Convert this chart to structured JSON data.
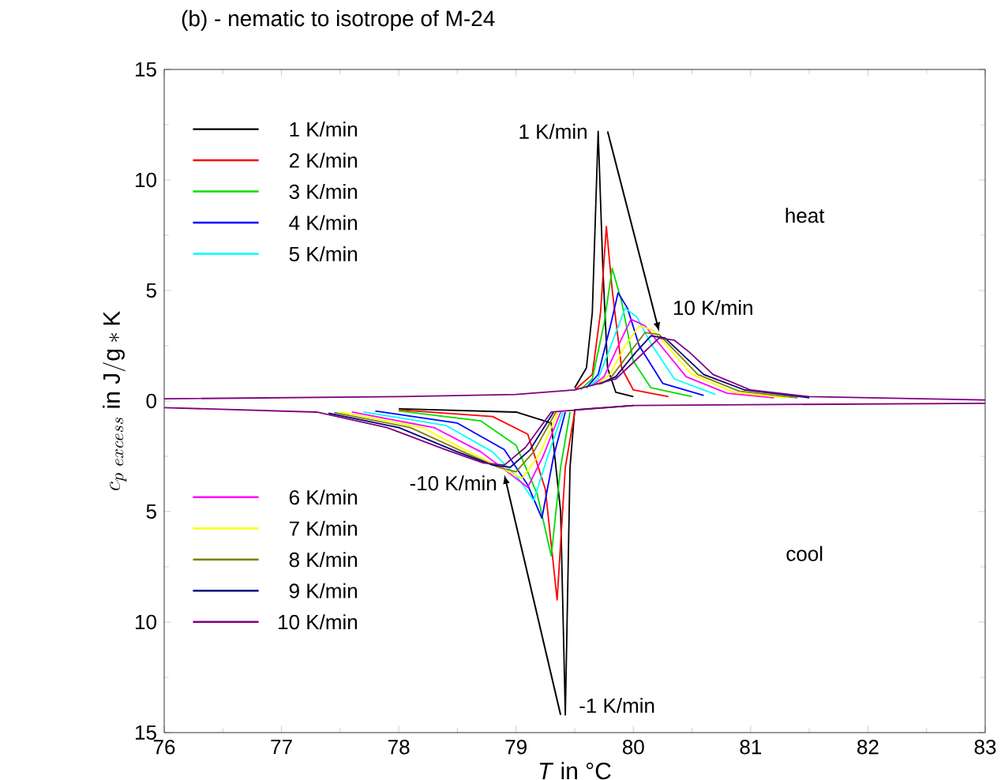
{
  "chart_data": {
    "type": "line",
    "title": "(b) - nematic to isotrope of M-24",
    "xlabel": "*T* in °C",
    "ylabel": "c_{p\\ excess}\\ \\mathrm{in\\ J/g*K}",
    "xlim": [
      76,
      83
    ],
    "xticks": [
      76,
      77,
      78,
      79,
      80,
      81,
      82,
      83
    ],
    "ylim": [
      -15,
      15
    ],
    "yticks": [
      {
        "value": -15,
        "label": "15"
      },
      {
        "value": -10,
        "label": "10"
      },
      {
        "value": -5,
        "label": "5"
      },
      0,
      5,
      10,
      15
    ],
    "legend": "left",
    "grid": false,
    "marker": "none",
    "line_style": "solid",
    "annotations": [
      {
        "text": "1 K/min",
        "x": 79.7,
        "y": 12.2
      },
      {
        "text": "10 K/min",
        "x": 80.22,
        "y": 2.85
      },
      {
        "text": "-10 K/min",
        "x": 78.9,
        "y": -2.9
      },
      {
        "text": "-1 K/min",
        "x": 79.42,
        "y": -14.2
      },
      "heat",
      "cool"
    ],
    "series": [
      {
        "name": "1 K/min",
        "color": "#000000",
        "x": [
          79.5,
          79.6,
          79.65,
          79.7,
          79.74,
          79.78,
          79.85,
          80
        ],
        "values": [
          0.6,
          1.5,
          4,
          12.2,
          6,
          1.5,
          0.4,
          0.2
        ]
      },
      {
        "name": "2 K/min",
        "color": "#ff0000",
        "x": [
          79.5,
          79.65,
          79.72,
          79.77,
          79.82,
          79.9,
          80,
          80.3
        ],
        "values": [
          0.5,
          1.2,
          4,
          7.9,
          5,
          1.5,
          0.5,
          0.2
        ]
      },
      {
        "name": "3 K/min",
        "color": "#00dd00",
        "x": [
          79.55,
          79.65,
          79.75,
          79.82,
          79.9,
          80,
          80.15,
          80.5
        ],
        "values": [
          0.52,
          1,
          3.5,
          6.0,
          4.5,
          1.8,
          0.6,
          0.2
        ]
      },
      {
        "name": "4 K/min",
        "color": "#0000ff",
        "x": [
          79.6,
          79.7,
          79.8,
          79.87,
          79.95,
          80.05,
          80.25,
          80.6
        ],
        "values": [
          0.6,
          1.2,
          3.3,
          4.9,
          4.2,
          2.5,
          0.8,
          0.25
        ]
      },
      {
        "name": "5 K/min",
        "color": "#00ffff",
        "x": [
          79.62,
          79.7,
          79.83,
          79.93,
          80.03,
          80.15,
          80.35,
          80.7
        ],
        "values": [
          0.65,
          1,
          2.8,
          4.2,
          3.8,
          2.6,
          1,
          0.3
        ]
      },
      {
        "name": "6 K/min",
        "color": "#ff00ff",
        "x": [
          79.65,
          79.75,
          79.88,
          79.98,
          80.1,
          80.25,
          80.45,
          80.8,
          81.2
        ],
        "values": [
          0.7,
          1.1,
          2.6,
          3.7,
          3.4,
          2.4,
          1.1,
          0.35,
          0.15
        ]
      },
      {
        "name": "7 K/min",
        "color": "#ffff00",
        "x": [
          79.68,
          79.8,
          79.93,
          80.05,
          80.17,
          80.3,
          80.5,
          80.85,
          81.3
        ],
        "values": [
          0.72,
          1.2,
          2.5,
          3.4,
          3.2,
          2.4,
          1.2,
          0.4,
          0.15
        ]
      },
      {
        "name": "8 K/min",
        "color": "#808000",
        "x": [
          79.7,
          79.8,
          79.97,
          80.1,
          80.22,
          80.35,
          80.55,
          80.9,
          81.4
        ],
        "values": [
          0.75,
          1.0,
          2.2,
          3.1,
          3.0,
          2.3,
          1.2,
          0.45,
          0.15
        ]
      },
      {
        "name": "9 K/min",
        "color": "#000080",
        "x": [
          79.72,
          79.85,
          80.02,
          80.15,
          80.27,
          80.4,
          80.6,
          80.95,
          81.5
        ],
        "values": [
          0.78,
          1.1,
          2.2,
          2.95,
          2.85,
          2.2,
          1.2,
          0.5,
          0.15
        ]
      },
      {
        "name": "10 K/min",
        "color": "#800080",
        "x": [
          76,
          78,
          79,
          79.5,
          79.85,
          80.05,
          80.22,
          80.35,
          80.48,
          80.68,
          81,
          81.5,
          83
        ],
        "values": [
          0.1,
          0.2,
          0.3,
          0.5,
          1.0,
          2.0,
          2.85,
          2.75,
          2.2,
          1.2,
          0.5,
          0.2,
          0.05
        ]
      },
      {
        "color": "#000000",
        "x": [
          78,
          79,
          79.3,
          79.38,
          79.42,
          79.46,
          79.5,
          80
        ],
        "values": [
          -0.35,
          -0.5,
          -1,
          -5,
          -14.2,
          -3,
          -0.4,
          -0.2
        ]
      },
      {
        "color": "#ff0000",
        "x": [
          78,
          78.8,
          79.1,
          79.25,
          79.35,
          79.42,
          79.5
        ],
        "values": [
          -0.4,
          -0.7,
          -1.5,
          -4,
          -9,
          -3,
          -0.5
        ]
      },
      {
        "color": "#00dd00",
        "x": [
          78,
          78.7,
          79,
          79.18,
          79.3,
          79.38,
          79.46
        ],
        "values": [
          -0.45,
          -0.9,
          -2,
          -4.2,
          -7,
          -3,
          -0.5
        ]
      },
      {
        "color": "#0000ff",
        "x": [
          77.8,
          78.5,
          78.9,
          79.1,
          79.22,
          79.32,
          79.42
        ],
        "values": [
          -0.45,
          -1,
          -2.2,
          -3.8,
          -5.3,
          -2.5,
          -0.5
        ]
      },
      {
        "color": "#00ffff",
        "x": [
          77.7,
          78.4,
          78.8,
          79.02,
          79.15,
          79.27,
          79.4
        ],
        "values": [
          -0.5,
          -1.1,
          -2.3,
          -3.5,
          -4.5,
          -2.5,
          -0.5
        ]
      },
      {
        "color": "#ff00ff",
        "x": [
          77.6,
          78.3,
          78.7,
          78.95,
          79.1,
          79.23,
          79.38
        ],
        "values": [
          -0.5,
          -1.2,
          -2.3,
          -3.3,
          -3.9,
          -2.5,
          -0.5
        ]
      },
      {
        "color": "#ffff00",
        "x": [
          77.5,
          78.2,
          78.6,
          78.9,
          79.05,
          79.2,
          79.36
        ],
        "values": [
          -0.5,
          -1.2,
          -2.3,
          -3.1,
          -3.5,
          -2.4,
          -0.5
        ]
      },
      {
        "color": "#808000",
        "x": [
          77.45,
          78.1,
          78.55,
          78.85,
          79.0,
          79.15,
          79.34
        ],
        "values": [
          -0.52,
          -1.2,
          -2.3,
          -3.0,
          -3.2,
          -2.3,
          -0.5
        ]
      },
      {
        "color": "#000080",
        "x": [
          77.4,
          78.0,
          78.5,
          78.8,
          78.95,
          79.12,
          79.32
        ],
        "values": [
          -0.55,
          -1.2,
          -2.3,
          -2.9,
          -3.0,
          -2.2,
          -0.5
        ]
      },
      {
        "color": "#800080",
        "x": [
          76,
          77.3,
          77.9,
          78.4,
          78.72,
          78.9,
          79.08,
          79.3,
          80,
          83
        ],
        "values": [
          -0.3,
          -0.5,
          -1.2,
          -2.2,
          -2.8,
          -2.9,
          -2.1,
          -0.5,
          -0.2,
          -0.1
        ]
      }
    ]
  }
}
